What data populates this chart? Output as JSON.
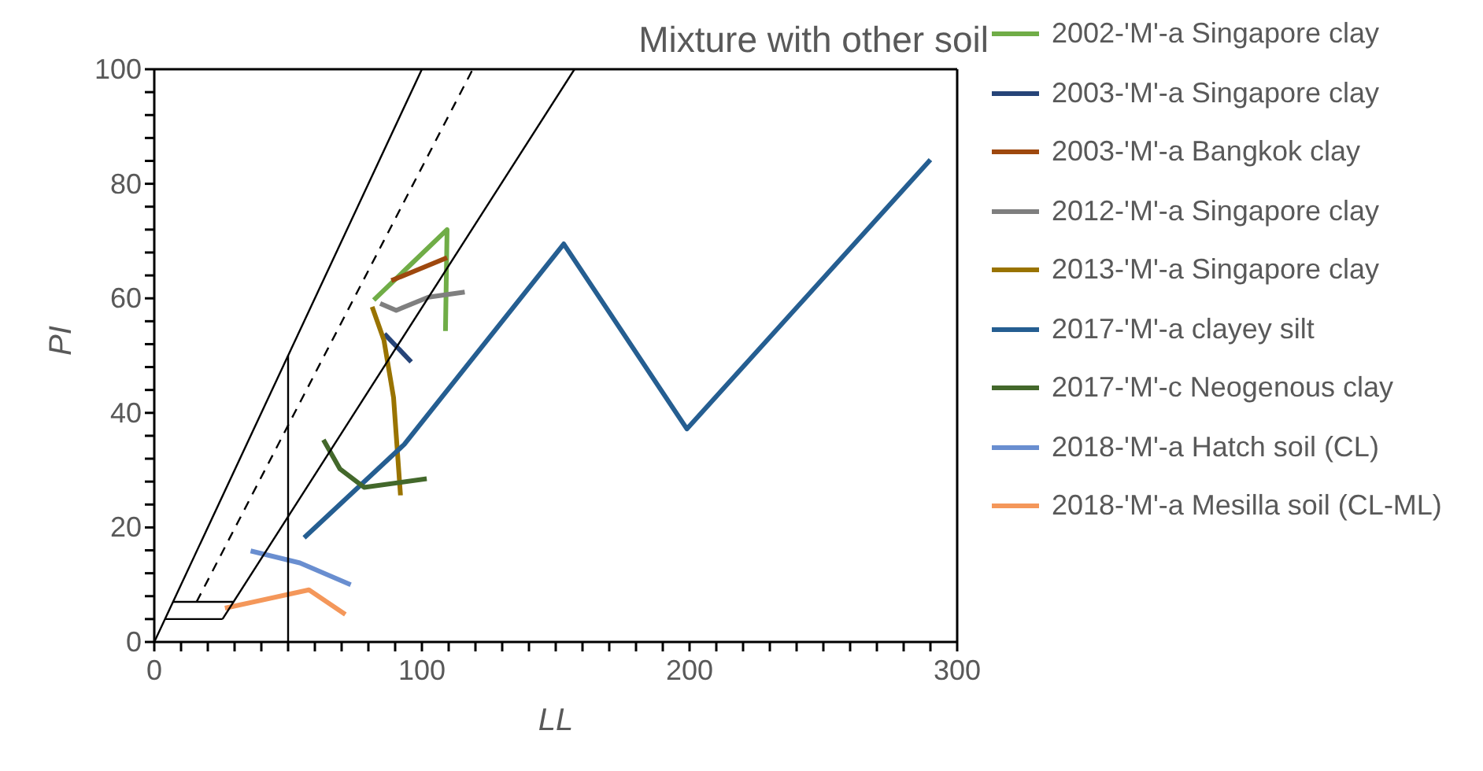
{
  "chart_data": {
    "type": "line",
    "title": "Mixture with other soil",
    "xlabel": "LL",
    "ylabel": "PI",
    "xlim": [
      0,
      300
    ],
    "ylim": [
      0,
      100
    ],
    "xticks": [
      0,
      {
        "value": 10,
        "label": null
      },
      {
        "value": 20,
        "label": null
      },
      {
        "value": 30,
        "label": null
      },
      {
        "value": 40,
        "label": null
      },
      {
        "value": 50,
        "label": null
      },
      {
        "value": 60,
        "label": null
      },
      {
        "value": 70,
        "label": null
      },
      {
        "value": 80,
        "label": null
      },
      {
        "value": 90,
        "label": null
      },
      100,
      {
        "value": 110,
        "label": null
      },
      {
        "value": 120,
        "label": null
      },
      {
        "value": 130,
        "label": null
      },
      {
        "value": 140,
        "label": null
      },
      {
        "value": 150,
        "label": null
      },
      {
        "value": 160,
        "label": null
      },
      {
        "value": 170,
        "label": null
      },
      {
        "value": 180,
        "label": null
      },
      {
        "value": 190,
        "label": null
      },
      200,
      {
        "value": 210,
        "label": null
      },
      {
        "value": 220,
        "label": null
      },
      {
        "value": 230,
        "label": null
      },
      {
        "value": 240,
        "label": null
      },
      {
        "value": 250,
        "label": null
      },
      {
        "value": 260,
        "label": null
      },
      {
        "value": 270,
        "label": null
      },
      {
        "value": 280,
        "label": null
      },
      {
        "value": 290,
        "label": null
      },
      300
    ],
    "yticks": [
      0,
      {
        "value": 4,
        "label": null
      },
      {
        "value": 8,
        "label": null
      },
      {
        "value": 12,
        "label": null
      },
      {
        "value": 16,
        "label": null
      },
      20,
      {
        "value": 24,
        "label": null
      },
      {
        "value": 28,
        "label": null
      },
      {
        "value": 32,
        "label": null
      },
      {
        "value": 36,
        "label": null
      },
      40,
      {
        "value": 44,
        "label": null
      },
      {
        "value": 48,
        "label": null
      },
      {
        "value": 52,
        "label": null
      },
      {
        "value": 56,
        "label": null
      },
      60,
      {
        "value": 64,
        "label": null
      },
      {
        "value": 68,
        "label": null
      },
      {
        "value": 72,
        "label": null
      },
      {
        "value": 76,
        "label": null
      },
      80,
      {
        "value": 84,
        "label": null
      },
      {
        "value": 88,
        "label": null
      },
      {
        "value": 92,
        "label": null
      },
      {
        "value": 96,
        "label": null
      },
      100
    ],
    "grid": false,
    "legend": "right",
    "marker": "none",
    "line_style": "solid",
    "series": [
      {
        "name": "2002-'M'-a Singapore clay",
        "color": "#70ad47",
        "x": [
          82,
          109.4,
          108.8
        ],
        "values": [
          59.7,
          72,
          54.3
        ]
      },
      {
        "name": "2003-'M'-a Singapore clay",
        "color": "#264478",
        "x": [
          86,
          96
        ],
        "values": [
          53.8,
          48.9
        ]
      },
      {
        "name": "2003-'M'-a Bangkok clay",
        "color": "#9e480e",
        "x": [
          88.6,
          109.4
        ],
        "values": [
          63.1,
          67.1
        ]
      },
      {
        "name": "2012-'M'-a Singapore clay",
        "color": "#7f7f7f",
        "x": [
          84.4,
          90.4,
          102.4,
          116
        ],
        "values": [
          59.1,
          57.9,
          60.2,
          61.1
        ]
      },
      {
        "name": "2013-'M'-a Singapore clay",
        "color": "#997300",
        "x": [
          81.4,
          85.8,
          89.4,
          92
        ],
        "values": [
          58.5,
          52.7,
          42.7,
          25.6
        ]
      },
      {
        "name": "2017-'M'-a clayey silt",
        "color": "#255e91",
        "x": [
          56,
          93.4,
          153,
          199,
          290
        ],
        "values": [
          18.2,
          34.5,
          69.5,
          37.2,
          84.2
        ]
      },
      {
        "name": "2017-'M'-c Neogenous clay",
        "color": "#43682b",
        "x": [
          63.2,
          69.4,
          78.4,
          101.8
        ],
        "values": [
          35.3,
          30.2,
          27,
          28.5
        ]
      },
      {
        "name": "2018-'M'-a Hatch soil (CL)",
        "color": "#698ed0",
        "x": [
          36,
          54.4,
          73.4
        ],
        "values": [
          15.9,
          13.8,
          10
        ]
      },
      {
        "name": "2018-'M'-a Mesilla soil (CL-ML)",
        "color": "#f4975a",
        "x": [
          26.4,
          57.8,
          71.4
        ],
        "values": [
          5.9,
          9.1,
          4.8
        ]
      },
      {
        "color": "#000000",
        "x": [
          0,
          100
        ],
        "values": [
          0,
          100
        ]
      },
      {
        "color": "#000000",
        "line_style": "dashed",
        "x": [
          15.8,
          119
        ],
        "values": [
          7,
          100
        ]
      },
      {
        "color": "#000000",
        "x": [
          25.5,
          157
        ],
        "values": [
          4,
          100
        ]
      },
      {
        "color": "#000000",
        "x": [
          7,
          29.6
        ],
        "values": [
          7,
          7
        ]
      },
      {
        "color": "#000000",
        "x": [
          4,
          25.5
        ],
        "values": [
          4,
          4
        ]
      },
      {
        "color": "#000000",
        "x": [
          50,
          50
        ],
        "values": [
          0,
          50
        ]
      }
    ]
  }
}
